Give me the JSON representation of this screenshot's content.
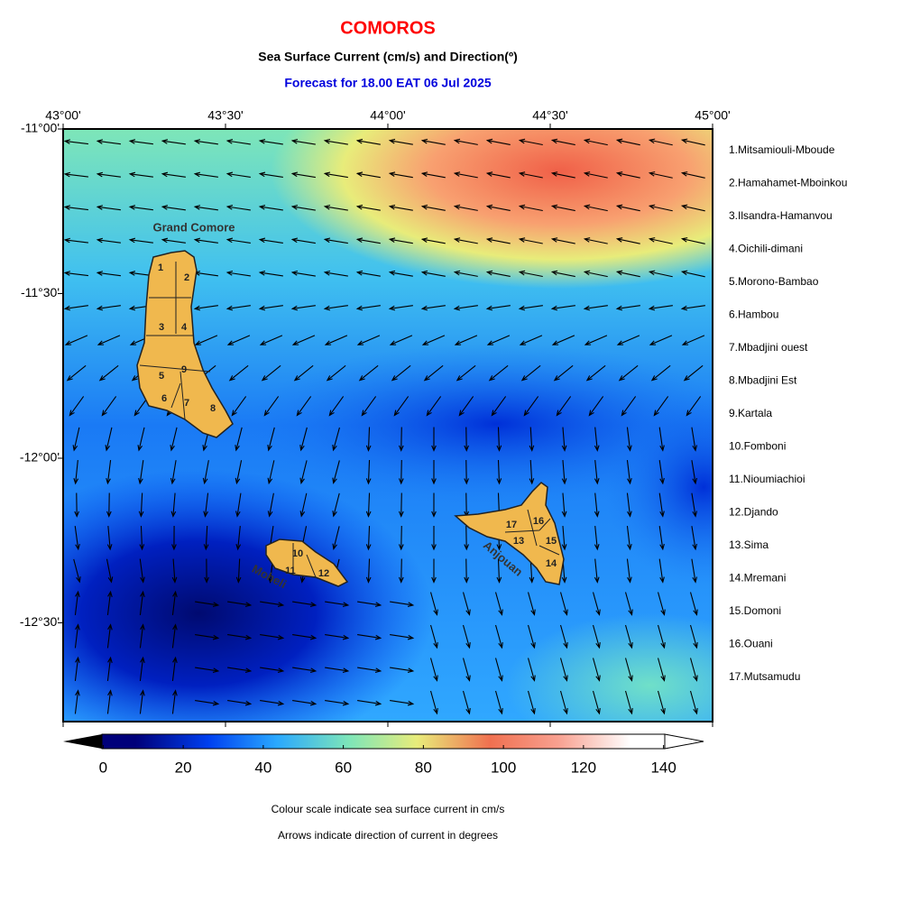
{
  "header": {
    "title": "COMOROS",
    "subtitle": "Sea Surface Current (cm/s) and Direction(º)",
    "forecast": "Forecast for  18.00 EAT 06 Jul 2025"
  },
  "map": {
    "xlim": [
      43,
      45
    ],
    "ylim": [
      -12.8,
      -11
    ],
    "xticks": [
      {
        "value": 43,
        "label": "43°00'"
      },
      {
        "value": 43.5,
        "label": "43°30'"
      },
      {
        "value": 44,
        "label": "44°00'"
      },
      {
        "value": 44.5,
        "label": "44°30'"
      },
      {
        "value": 45,
        "label": "45°00'"
      }
    ],
    "yticks": [
      {
        "value": -11,
        "label": "-11°00'"
      },
      {
        "value": -11.5,
        "label": "-11°30'"
      },
      {
        "value": -12,
        "label": "-12°00'"
      },
      {
        "value": -12.5,
        "label": "-12°30'"
      }
    ],
    "islands": [
      "Grand Comore",
      "Moheli",
      "Anjouan"
    ],
    "region_numbers": [
      "1",
      "2",
      "3",
      "4",
      "5",
      "6",
      "7",
      "8",
      "9",
      "10",
      "11",
      "12",
      "13",
      "14",
      "15",
      "16",
      "17"
    ]
  },
  "legend": [
    "1.Mitsamiouli-Mboude",
    "2.Hamahamet-Mboinkou",
    "3.Ilsandra-Hamanvou",
    "4.Oichili-dimani",
    "5.Morono-Bambao",
    "6.Hambou",
    "7.Mbadjini ouest",
    "8.Mbadjini Est",
    "9.Kartala",
    "10.Fomboni",
    "11.Nioumiachioi",
    "12.Djando",
    "13.Sima",
    "14.Mremani",
    "15.Domoni",
    "16.Ouani",
    "17.Mutsamudu"
  ],
  "colorbar": {
    "lim": [
      -10,
      150
    ],
    "ticks": [
      0,
      20,
      40,
      60,
      80,
      100,
      120,
      140
    ]
  },
  "notes": [
    "Colour scale indicate sea surface current in cm/s",
    "Arrows indicate direction of current in degrees"
  ]
}
